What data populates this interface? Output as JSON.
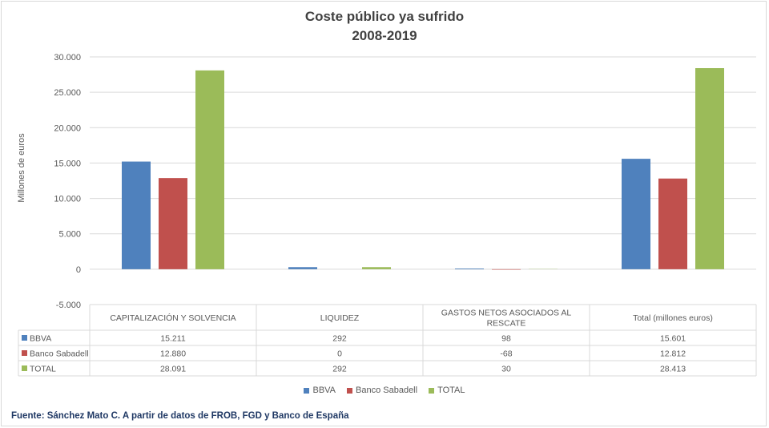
{
  "chart_data": {
    "type": "bar",
    "title": "Coste público ya sufrido",
    "subtitle": "2008-2019",
    "ylabel": "Millones de euros",
    "ylim": [
      -5000,
      30000
    ],
    "yticks": [
      -5000,
      0,
      5000,
      10000,
      15000,
      20000,
      25000,
      30000
    ],
    "ytick_labels": [
      "-5.000",
      "0",
      "5.000",
      "10.000",
      "15.000",
      "20.000",
      "25.000",
      "30.000"
    ],
    "grid": true,
    "legend_position": "bottom",
    "categories": [
      "CAPITALIZACIÓN Y SOLVENCIA",
      "LIQUIDEZ",
      "GASTOS NETOS ASOCIADOS AL RESCATE",
      "Total (millones euros)"
    ],
    "category_lines": [
      [
        "CAPITALIZACIÓN Y SOLVENCIA"
      ],
      [
        "LIQUIDEZ"
      ],
      [
        "GASTOS NETOS ASOCIADOS AL",
        "RESCATE"
      ],
      [
        "Total (millones euros)"
      ]
    ],
    "series": [
      {
        "name": "BBVA",
        "color": "#4f81bd",
        "values": [
          15211,
          292,
          98,
          15601
        ],
        "labels": [
          "15.211",
          "292",
          "98",
          "15.601"
        ]
      },
      {
        "name": "Banco Sabadell",
        "color": "#c0504d",
        "values": [
          12880,
          0,
          -68,
          12812
        ],
        "labels": [
          "12.880",
          "0",
          "-68",
          "12.812"
        ]
      },
      {
        "name": "TOTAL",
        "color": "#9bbb59",
        "values": [
          28091,
          292,
          30,
          28413
        ],
        "labels": [
          "28.091",
          "292",
          "30",
          "28.413"
        ]
      }
    ]
  },
  "source": "Fuente: Sánchez Mato C.  A partir  de datos de FROB, FGD y Banco de España"
}
